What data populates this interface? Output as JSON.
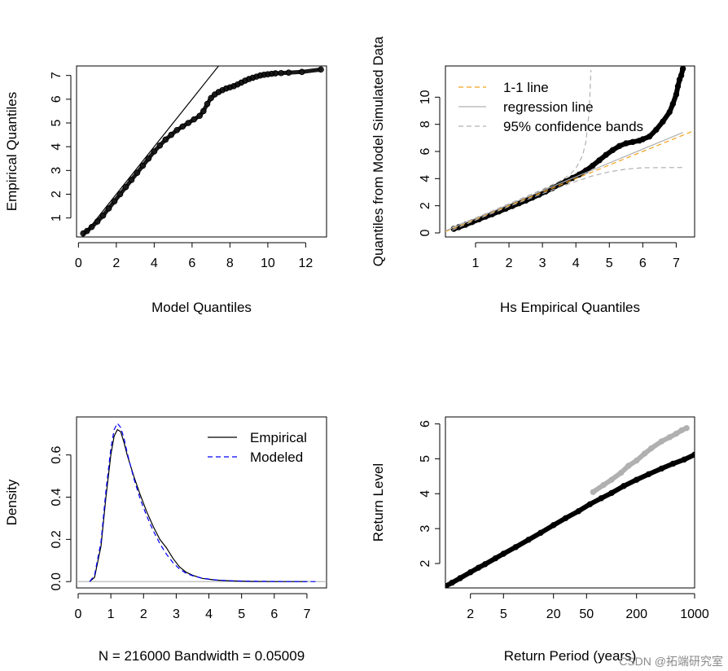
{
  "watermark": "CSDN @拓端研究室",
  "chart_data": [
    {
      "id": "p1",
      "type": "scatter",
      "title": "",
      "xlabel": "Model Quantiles",
      "ylabel": "Empirical Quantiles",
      "xlim": [
        -0.1,
        13.1
      ],
      "ylim": [
        0.2,
        7.4
      ],
      "xticks": [
        0,
        2,
        4,
        6,
        8,
        10,
        12
      ],
      "yticks": [
        1,
        2,
        3,
        4,
        5,
        6,
        7
      ],
      "grid": false,
      "series": [
        {
          "name": "quantile points",
          "kind": "points",
          "x": [
            0.25,
            0.45,
            0.7,
            1.0,
            1.3,
            1.6,
            1.9,
            2.2,
            2.5,
            2.8,
            3.1,
            3.4,
            3.7,
            4.0,
            4.3,
            4.6,
            4.9,
            5.2,
            5.5,
            5.8,
            6.1,
            6.4,
            6.6,
            6.8,
            7.0,
            7.2,
            7.4,
            7.6,
            7.8,
            8.0,
            8.2,
            8.4,
            8.6,
            8.8,
            9.0,
            9.2,
            9.4,
            9.6,
            9.8,
            10.0,
            10.2,
            10.4,
            10.7,
            11.1,
            11.8,
            12.8
          ],
          "y": [
            0.35,
            0.45,
            0.62,
            0.85,
            1.1,
            1.4,
            1.7,
            2.0,
            2.3,
            2.6,
            2.9,
            3.2,
            3.5,
            3.8,
            4.05,
            4.3,
            4.5,
            4.7,
            4.85,
            5.0,
            5.15,
            5.3,
            5.5,
            5.8,
            6.05,
            6.2,
            6.3,
            6.38,
            6.45,
            6.5,
            6.55,
            6.62,
            6.7,
            6.78,
            6.85,
            6.9,
            6.95,
            7.0,
            7.03,
            7.05,
            7.07,
            7.09,
            7.1,
            7.12,
            7.15,
            7.25
          ]
        },
        {
          "name": "1-1 reference",
          "kind": "line",
          "x": [
            0,
            7.45
          ],
          "y": [
            0,
            7.45
          ]
        }
      ]
    },
    {
      "id": "p2",
      "type": "scatter",
      "title": "",
      "xlabel": "Hs Empirical Quantiles",
      "ylabel": "Quantiles from Model Simulated Data",
      "xlim": [
        0.1,
        7.55
      ],
      "ylim": [
        -0.3,
        12.3
      ],
      "xticks": [
        1,
        2,
        3,
        4,
        5,
        6,
        7
      ],
      "yticks": [
        0,
        2,
        4,
        6,
        8,
        10
      ],
      "grid": false,
      "legend": {
        "position": "top-left",
        "entries": [
          {
            "label": "1-1 line",
            "color": "#f4a21c",
            "dash": "dashed"
          },
          {
            "label": "regression line",
            "color": "#b0b0b0",
            "dash": "solid"
          },
          {
            "label": "95% confidence bands",
            "color": "#b0b0b0",
            "dash": "dashed"
          }
        ]
      },
      "series": [
        {
          "name": "quantile points",
          "kind": "points",
          "x": [
            0.35,
            0.5,
            0.7,
            0.9,
            1.1,
            1.3,
            1.5,
            1.7,
            1.9,
            2.1,
            2.3,
            2.5,
            2.7,
            2.9,
            3.1,
            3.3,
            3.5,
            3.7,
            3.9,
            4.1,
            4.3,
            4.5,
            4.7,
            4.9,
            5.1,
            5.3,
            5.5,
            5.7,
            5.9,
            6.0,
            6.2,
            6.4,
            6.6,
            6.8,
            6.9,
            7.0,
            7.05,
            7.1,
            7.15,
            7.2
          ],
          "y": [
            0.3,
            0.42,
            0.6,
            0.8,
            1.0,
            1.2,
            1.38,
            1.58,
            1.78,
            1.98,
            2.18,
            2.38,
            2.6,
            2.82,
            3.05,
            3.3,
            3.55,
            3.8,
            4.05,
            4.3,
            4.6,
            4.95,
            5.35,
            5.75,
            6.1,
            6.4,
            6.6,
            6.7,
            6.8,
            6.9,
            7.1,
            7.6,
            8.2,
            8.9,
            9.5,
            10.2,
            10.8,
            11.3,
            11.6,
            12.1
          ]
        },
        {
          "name": "1-1 line",
          "kind": "line",
          "color": "#f4a21c",
          "dash": "dashed",
          "x": [
            0.1,
            7.55
          ],
          "y": [
            0.1,
            7.55
          ]
        },
        {
          "name": "regression line",
          "kind": "line",
          "color": "#b0b0b0",
          "dash": "solid",
          "x": [
            0.1,
            7.2
          ],
          "y": [
            0.15,
            7.4
          ]
        },
        {
          "name": "95% upper band",
          "kind": "line",
          "color": "#b0b0b0",
          "dash": "dashed",
          "x": [
            0.3,
            1,
            2,
            3,
            3.5,
            3.8,
            4.0,
            4.2,
            4.3,
            4.4,
            4.45
          ],
          "y": [
            0.4,
            1.1,
            2.15,
            3.2,
            3.8,
            4.25,
            4.75,
            5.7,
            6.7,
            9.0,
            12.0
          ]
        },
        {
          "name": "95% lower band",
          "kind": "line",
          "color": "#b0b0b0",
          "dash": "dashed",
          "x": [
            0.3,
            1,
            2,
            3,
            3.5,
            4.0,
            4.5,
            5.0,
            5.5,
            6.0,
            7.2
          ],
          "y": [
            0.2,
            0.95,
            1.95,
            2.9,
            3.35,
            3.8,
            4.2,
            4.5,
            4.7,
            4.8,
            4.82
          ]
        }
      ]
    },
    {
      "id": "p3",
      "type": "line",
      "title": "",
      "xlabel": "N = 216000   Bandwidth = 0.05009",
      "ylabel": "Density",
      "xlim": [
        -0.05,
        7.6
      ],
      "ylim": [
        -0.03,
        0.78
      ],
      "xticks": [
        0,
        1,
        2,
        3,
        4,
        5,
        6,
        7
      ],
      "yticks": [
        0.0,
        0.2,
        0.4,
        0.6
      ],
      "ytick_labels": [
        "0.0",
        "0.2",
        "0.4",
        "0.6"
      ],
      "grid": false,
      "legend": {
        "position": "top-right",
        "entries": [
          {
            "label": "Empirical",
            "color": "#000000",
            "dash": "solid"
          },
          {
            "label": "Modeled",
            "color": "#0000ff",
            "dash": "dashed"
          }
        ]
      },
      "series": [
        {
          "name": "zero baseline",
          "kind": "line",
          "color": "#b0b0b0",
          "dash": "solid",
          "x": [
            -0.05,
            7.6
          ],
          "y": [
            0,
            0
          ]
        },
        {
          "name": "Empirical",
          "kind": "line",
          "color": "#000000",
          "dash": "solid",
          "x": [
            0.35,
            0.5,
            0.7,
            0.85,
            1.0,
            1.1,
            1.2,
            1.3,
            1.4,
            1.5,
            1.7,
            1.9,
            2.1,
            2.3,
            2.5,
            2.7,
            2.9,
            3.1,
            3.3,
            3.5,
            3.8,
            4.2,
            4.7,
            5.3,
            6.0,
            7.0
          ],
          "y": [
            0.0,
            0.02,
            0.17,
            0.4,
            0.6,
            0.69,
            0.72,
            0.71,
            0.66,
            0.6,
            0.5,
            0.41,
            0.33,
            0.26,
            0.2,
            0.16,
            0.11,
            0.07,
            0.045,
            0.03,
            0.015,
            0.007,
            0.003,
            0.001,
            0.0,
            0.0
          ]
        },
        {
          "name": "Modeled",
          "kind": "line",
          "color": "#0000ff",
          "dash": "dashed",
          "x": [
            0.35,
            0.5,
            0.7,
            0.85,
            1.0,
            1.1,
            1.2,
            1.3,
            1.4,
            1.5,
            1.7,
            1.9,
            2.1,
            2.3,
            2.5,
            2.7,
            2.9,
            3.1,
            3.3,
            3.5,
            3.8,
            4.2,
            4.7,
            5.3,
            6.0,
            7.0,
            7.3
          ],
          "y": [
            0.0,
            0.03,
            0.19,
            0.43,
            0.63,
            0.72,
            0.75,
            0.73,
            0.68,
            0.61,
            0.49,
            0.39,
            0.31,
            0.24,
            0.18,
            0.13,
            0.09,
            0.06,
            0.04,
            0.028,
            0.016,
            0.008,
            0.004,
            0.002,
            0.0008,
            0.0002,
            0.0
          ]
        }
      ]
    },
    {
      "id": "p4",
      "type": "scatter",
      "title": "",
      "xlabel": "Return Period (years)",
      "ylabel": "Return Level",
      "xscale": "log",
      "xlim": [
        1,
        1000
      ],
      "ylim": [
        1.3,
        6.2
      ],
      "xticks": [
        2,
        5,
        20,
        50,
        200,
        1000
      ],
      "yticks": [
        2,
        3,
        4,
        5,
        6
      ],
      "grid": false,
      "series": [
        {
          "name": "empirical return levels",
          "kind": "points",
          "color": "#b0b0b0",
          "x": [
            60,
            80,
            100,
            130,
            160,
            200,
            250,
            300,
            400,
            500,
            600,
            700,
            800
          ],
          "y": [
            4.05,
            4.25,
            4.4,
            4.6,
            4.8,
            4.95,
            5.15,
            5.3,
            5.5,
            5.62,
            5.72,
            5.82,
            5.88
          ]
        },
        {
          "name": "modeled return levels",
          "kind": "points",
          "color": "#000000",
          "x": [
            1,
            1.2,
            1.5,
            2,
            2.5,
            3,
            4,
            5,
            7,
            10,
            14,
            20,
            28,
            40,
            55,
            75,
            100,
            140,
            200,
            280,
            400,
            550,
            750,
            1000
          ],
          "y": [
            1.35,
            1.45,
            1.58,
            1.75,
            1.88,
            1.98,
            2.15,
            2.28,
            2.47,
            2.68,
            2.88,
            3.1,
            3.3,
            3.5,
            3.7,
            3.87,
            4.02,
            4.22,
            4.4,
            4.56,
            4.72,
            4.86,
            4.98,
            5.12
          ]
        }
      ]
    }
  ]
}
